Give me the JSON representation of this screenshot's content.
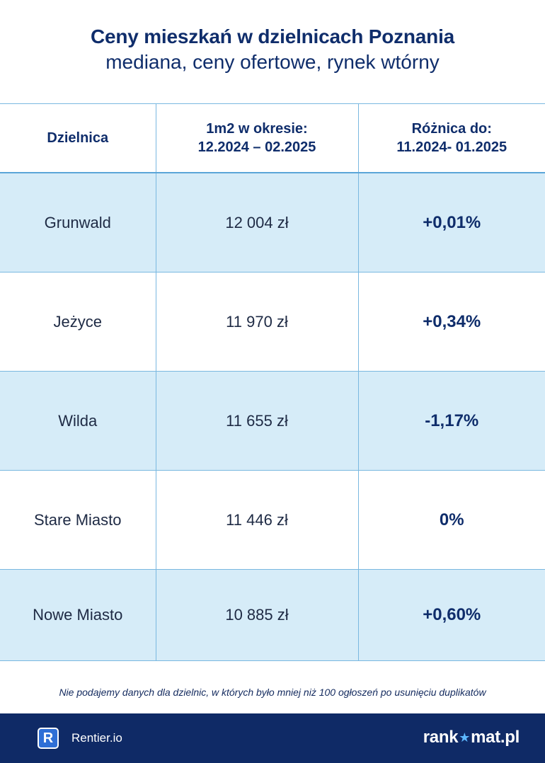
{
  "header": {
    "title": "Ceny mieszkań w dzielnicach Poznania",
    "subtitle": "mediana, ceny ofertowe, rynek wtórny"
  },
  "table": {
    "headers": {
      "district": "Dzielnica",
      "price_line1": "1m2 w okresie:",
      "price_line2": "12.2024 – 02.2025",
      "diff_line1": "Różnica do:",
      "diff_line2": "11.2024- 01.2025"
    },
    "rows": [
      {
        "district": "Grunwald",
        "price": "12 004 zł",
        "diff": "+0,01%"
      },
      {
        "district": "Jeżyce",
        "price": "11 970 zł",
        "diff": "+0,34%"
      },
      {
        "district": "Wilda",
        "price": "11 655 zł",
        "diff": "-1,17%"
      },
      {
        "district": "Stare Miasto",
        "price": "11 446 zł",
        "diff": "0%"
      },
      {
        "district": "Nowe Miasto",
        "price": "10 885 zł",
        "diff": "+0,60%"
      }
    ]
  },
  "footnote": "Nie podajemy danych dla dzielnic, w których było mniej niż 100 ogłoszeń po usunięciu duplikatów",
  "footer": {
    "rentier_icon_letter": "R",
    "rentier_label": "Rentier.io",
    "rankomat_part1": "rank",
    "rankomat_star": "★",
    "rankomat_part2": "mat.pl"
  },
  "colors": {
    "navy": "#0f2a66",
    "row_blue": "#d6ecf8",
    "border": "#7ab8e0"
  }
}
